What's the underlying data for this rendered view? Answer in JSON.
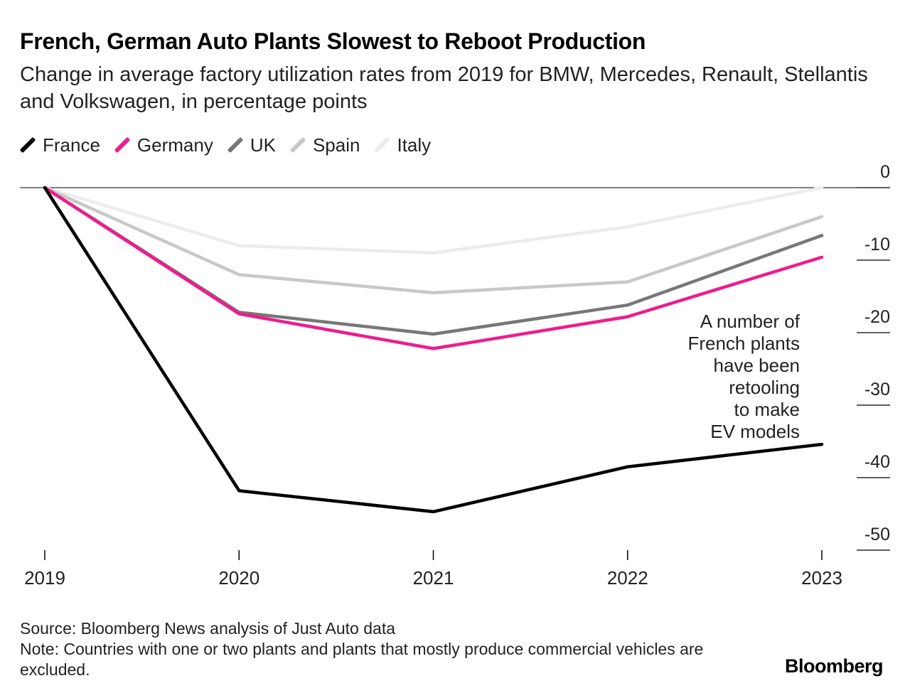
{
  "title": "French, German Auto Plants Slowest to Reboot Production",
  "subtitle": "Change in average factory utilization rates from 2019 for BMW, Mercedes, Renault, Stellantis and Volkswagen, in percentage points",
  "legend": [
    {
      "name": "France",
      "color": "#000000"
    },
    {
      "name": "Germany",
      "color": "#ee1c8e"
    },
    {
      "name": "UK",
      "color": "#777777"
    },
    {
      "name": "Spain",
      "color": "#c8c8c8"
    },
    {
      "name": "Italy",
      "color": "#ececec"
    }
  ],
  "annotation": [
    "A number of",
    "French plants",
    "have been",
    "retooling",
    "to make",
    "EV models"
  ],
  "source": "Source: Bloomberg News analysis of Just Auto data",
  "note": "Note: Countries with one or two plants and plants that mostly produce commercial vehicles are excluded.",
  "brand": "Bloomberg",
  "chart_data": {
    "type": "line",
    "x": [
      "2019",
      "2020",
      "2021",
      "2022",
      "2023"
    ],
    "series": [
      {
        "name": "Italy",
        "color": "#ececec",
        "values": [
          0,
          -8,
          -9,
          -5.4,
          0
        ]
      },
      {
        "name": "Spain",
        "color": "#c8c8c8",
        "values": [
          0,
          -12,
          -14.5,
          -13,
          -4
        ]
      },
      {
        "name": "UK",
        "color": "#777777",
        "values": [
          0,
          -17.2,
          -20.2,
          -16.2,
          -6.6
        ]
      },
      {
        "name": "Germany",
        "color": "#ee1c8e",
        "values": [
          0,
          -17.4,
          -22.2,
          -17.8,
          -9.6
        ]
      },
      {
        "name": "France",
        "color": "#000000",
        "values": [
          0,
          -41.8,
          -44.7,
          -38.5,
          -35.4
        ]
      }
    ],
    "yticks": [
      0,
      -10,
      -20,
      -30,
      -40,
      -50
    ],
    "ylim": [
      -50,
      0
    ],
    "xlabel": "",
    "ylabel": ""
  }
}
